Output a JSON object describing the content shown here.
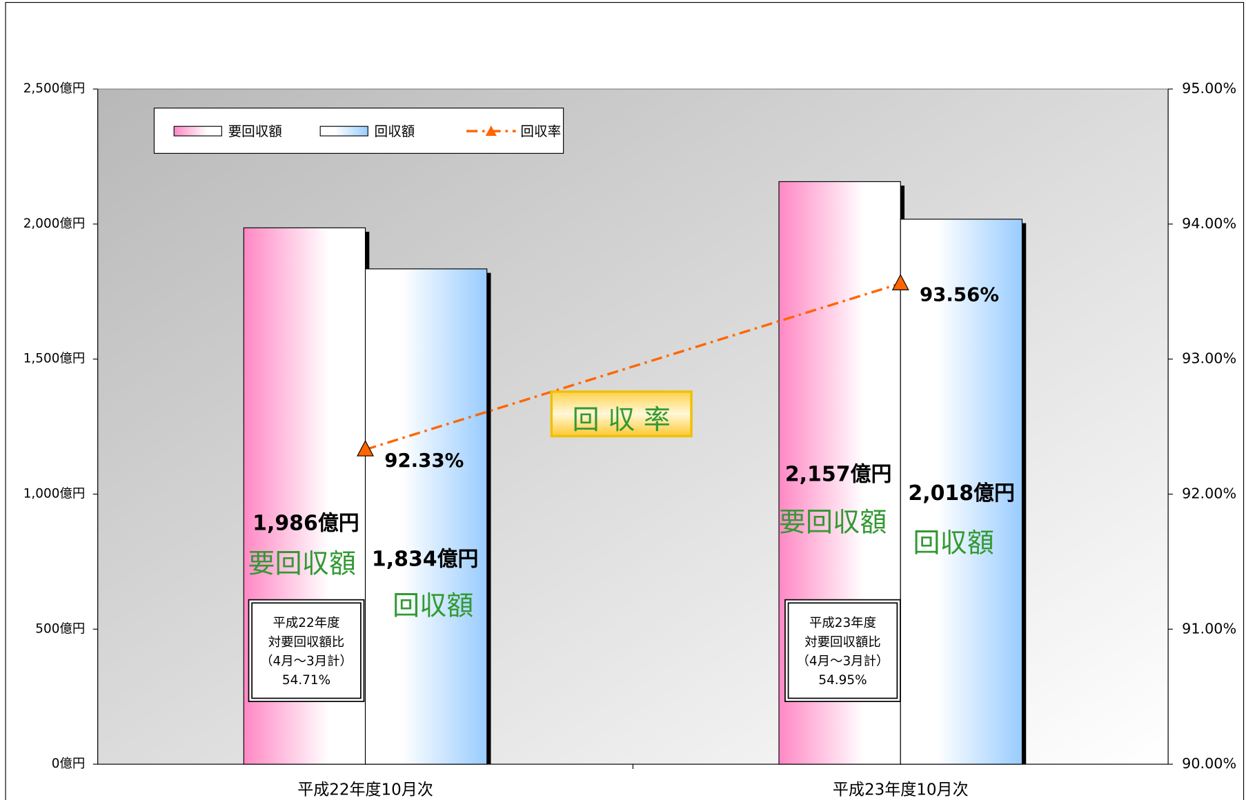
{
  "chart_data": {
    "type": "bar-line",
    "categories": [
      "平成22年度10月次",
      "平成23年度10月次"
    ],
    "series": [
      {
        "name": "要回収額",
        "color": "#ff88c4",
        "values": [
          1986,
          2157
        ],
        "value_labels": [
          "1,986億円",
          "2,157億円"
        ]
      },
      {
        "name": "回収額",
        "color": "#99ccff",
        "values": [
          1834,
          2018
        ],
        "value_labels": [
          "1,834億円",
          "2,018億円"
        ]
      },
      {
        "name": "回収率",
        "type": "line",
        "axis": "y2",
        "color": "#ff6600",
        "values": [
          92.33,
          93.56
        ],
        "value_labels": [
          "92.33%",
          "93.56%"
        ]
      }
    ],
    "ylim": [
      0,
      2500
    ],
    "yticks": [
      {
        "value": 0,
        "label": "0億円"
      },
      {
        "value": 500,
        "label": "500億円"
      },
      {
        "value": 1000,
        "label": "1,000億円"
      },
      {
        "value": 1500,
        "label": "1,500億円"
      },
      {
        "value": 2000,
        "label": "2,000億円"
      },
      {
        "value": 2500,
        "label": "2,500億円"
      }
    ],
    "y2lim": [
      90,
      95
    ],
    "y2ticks": [
      {
        "value": 90,
        "label": "90.00%"
      },
      {
        "value": 91,
        "label": "91.00%"
      },
      {
        "value": 92,
        "label": "92.00%"
      },
      {
        "value": 93,
        "label": "93.00%"
      },
      {
        "value": 94,
        "label": "94.00%"
      },
      {
        "value": 95,
        "label": "95.00%"
      }
    ],
    "legend": "top-left",
    "annotation": "回 収 率",
    "notes": [
      [
        "平成22年度",
        "対要回収額比",
        "（4月～3月計）",
        "54.71%"
      ],
      [
        "平成23年度",
        "対要回収額比",
        "（4月～3月計）",
        "54.95%"
      ]
    ]
  }
}
